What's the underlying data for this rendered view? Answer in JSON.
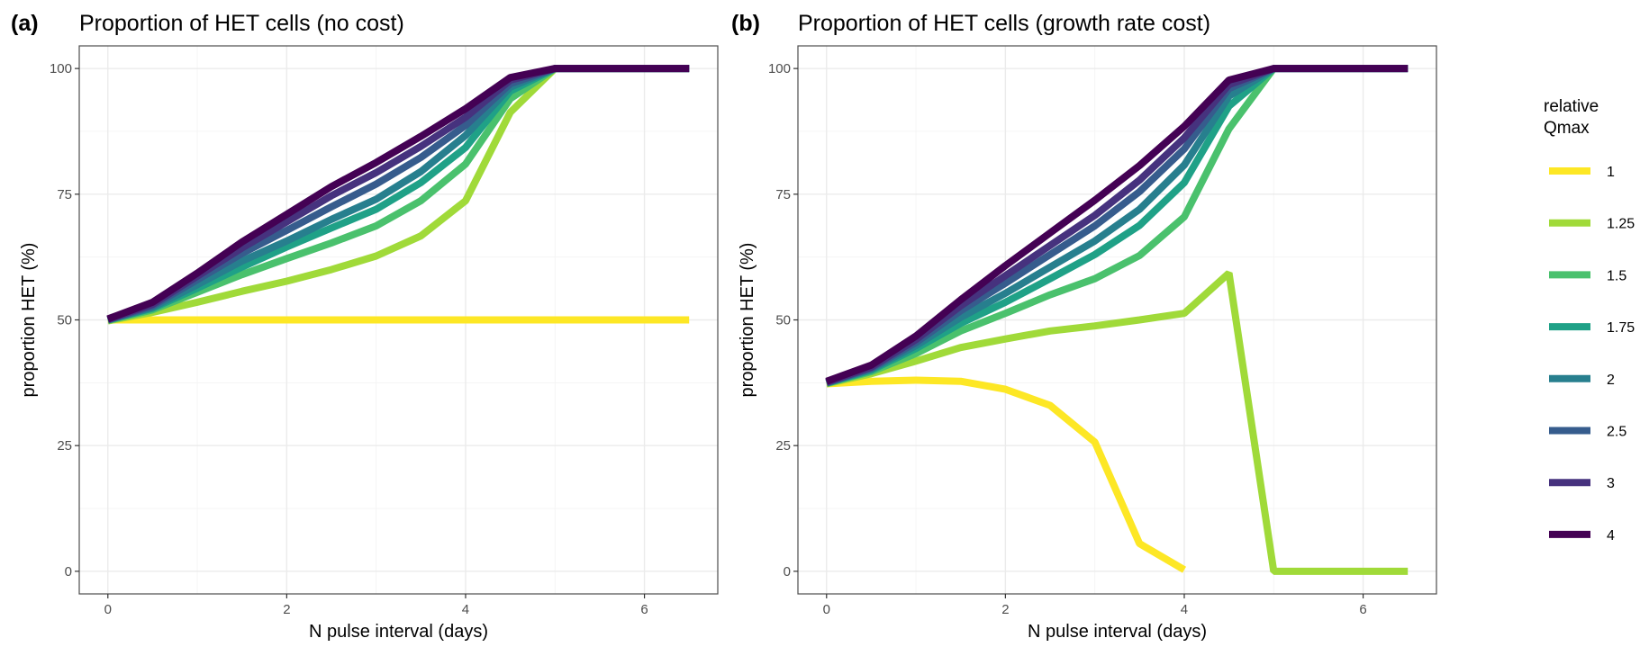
{
  "chart_data": [
    {
      "type": "line",
      "tag": "(a)",
      "title": "Proportion of HET cells (no cost)",
      "xlabel": "N pulse interval (days)",
      "ylabel": "proportion HET (%)",
      "xlim": [
        -0.32,
        6.82
      ],
      "ylim": [
        -4.5,
        104.5
      ],
      "xticks": [
        0,
        2,
        4,
        6
      ],
      "yticks": [
        0,
        25,
        50,
        75,
        100
      ],
      "grid": true,
      "x": [
        0,
        0.5,
        1,
        1.5,
        2,
        2.5,
        3,
        3.5,
        4,
        4.5,
        5,
        5.5,
        6,
        6.5
      ],
      "series": [
        {
          "name": "1",
          "values": [
            50,
            50,
            50,
            50,
            50,
            50,
            50,
            50,
            50,
            50,
            50,
            50,
            50,
            50
          ]
        },
        {
          "name": "1.25",
          "values": [
            49.8,
            51.5,
            53.5,
            55.7,
            57.7,
            60,
            62.7,
            66.7,
            73.7,
            91.3,
            100,
            100,
            100,
            100
          ]
        },
        {
          "name": "1.5",
          "values": [
            49.9,
            52,
            55.5,
            59,
            62.2,
            65.3,
            68.7,
            73.7,
            81,
            94,
            100,
            100,
            100,
            100
          ]
        },
        {
          "name": "1.75",
          "values": [
            50,
            52.3,
            56.3,
            60.5,
            64.5,
            68.3,
            72,
            77.3,
            84.3,
            95.5,
            100,
            100,
            100,
            100
          ]
        },
        {
          "name": "2",
          "values": [
            50,
            52.5,
            57,
            61.7,
            65.7,
            70,
            74,
            79.5,
            86.7,
            96.3,
            100,
            100,
            100,
            100
          ]
        },
        {
          "name": "2.5",
          "values": [
            50,
            52.8,
            58,
            63.2,
            67.8,
            72.5,
            77,
            82.3,
            88.7,
            97,
            100,
            100,
            100,
            100
          ]
        },
        {
          "name": "3",
          "values": [
            50.1,
            53.1,
            58.7,
            64.3,
            69.5,
            74.7,
            79.3,
            84.5,
            90.3,
            97.7,
            100,
            100,
            100,
            100
          ]
        },
        {
          "name": "4",
          "values": [
            50.2,
            53.5,
            59.3,
            65.5,
            71,
            76.5,
            81.3,
            86.5,
            92,
            98.2,
            100,
            100,
            100,
            100
          ]
        }
      ]
    },
    {
      "type": "line",
      "tag": "(b)",
      "title": "Proportion of HET cells (growth rate cost)",
      "xlabel": "N pulse interval (days)",
      "ylabel": "proportion HET (%)",
      "xlim": [
        -0.32,
        6.82
      ],
      "ylim": [
        -4.5,
        104.5
      ],
      "xticks": [
        0,
        2,
        4,
        6
      ],
      "yticks": [
        0,
        25,
        50,
        75,
        100
      ],
      "grid": true,
      "x": [
        0,
        0.5,
        1,
        1.5,
        2,
        2.5,
        3,
        3.5,
        4,
        4.5,
        5,
        5.5,
        6,
        6.5
      ],
      "series": [
        {
          "name": "1",
          "values": [
            37.3,
            37.8,
            38,
            37.8,
            36.2,
            33,
            25.7,
            5.5,
            0.3,
            null,
            null,
            null,
            null,
            null
          ]
        },
        {
          "name": "1.25",
          "values": [
            37.3,
            39.3,
            41.8,
            44.5,
            46.2,
            47.8,
            48.8,
            50,
            51.3,
            59.3,
            0,
            0,
            0,
            0
          ]
        },
        {
          "name": "1.5",
          "values": [
            37.4,
            39.7,
            43.3,
            47.8,
            51.3,
            55,
            58.2,
            62.8,
            70.5,
            88,
            100,
            100,
            100,
            100
          ]
        },
        {
          "name": "1.75",
          "values": [
            37.4,
            40,
            44.3,
            49.3,
            53.5,
            58.2,
            63,
            68.8,
            77.3,
            92.5,
            100,
            100,
            100,
            100
          ]
        },
        {
          "name": "2",
          "values": [
            37.5,
            40.2,
            44.9,
            50.5,
            55.3,
            60.5,
            65.7,
            72,
            80.8,
            94.5,
            100,
            100,
            100,
            100
          ]
        },
        {
          "name": "2.5",
          "values": [
            37.5,
            40.4,
            45.5,
            51.8,
            57.3,
            63,
            68.7,
            75.5,
            84,
            96,
            100,
            100,
            100,
            100
          ]
        },
        {
          "name": "3",
          "values": [
            37.6,
            40.6,
            46.1,
            52.8,
            58.8,
            64.8,
            70.8,
            77.8,
            86.2,
            96.8,
            100,
            100,
            100,
            100
          ]
        },
        {
          "name": "4",
          "values": [
            37.8,
            41,
            46.8,
            54,
            60.8,
            67.3,
            73.8,
            80.7,
            88.5,
            97.7,
            100,
            100,
            100,
            100
          ]
        }
      ]
    }
  ],
  "legend": {
    "title_line1": "relative",
    "title_line2": "Qmax",
    "placement": "right",
    "items": [
      {
        "label": "1",
        "color": "#FDE725"
      },
      {
        "label": "1.25",
        "color": "#A0DA39"
      },
      {
        "label": "1.5",
        "color": "#4AC16D"
      },
      {
        "label": "1.75",
        "color": "#1FA187"
      },
      {
        "label": "2",
        "color": "#277F8E"
      },
      {
        "label": "2.5",
        "color": "#365C8D"
      },
      {
        "label": "3",
        "color": "#46327E"
      },
      {
        "label": "4",
        "color": "#440154"
      }
    ]
  }
}
